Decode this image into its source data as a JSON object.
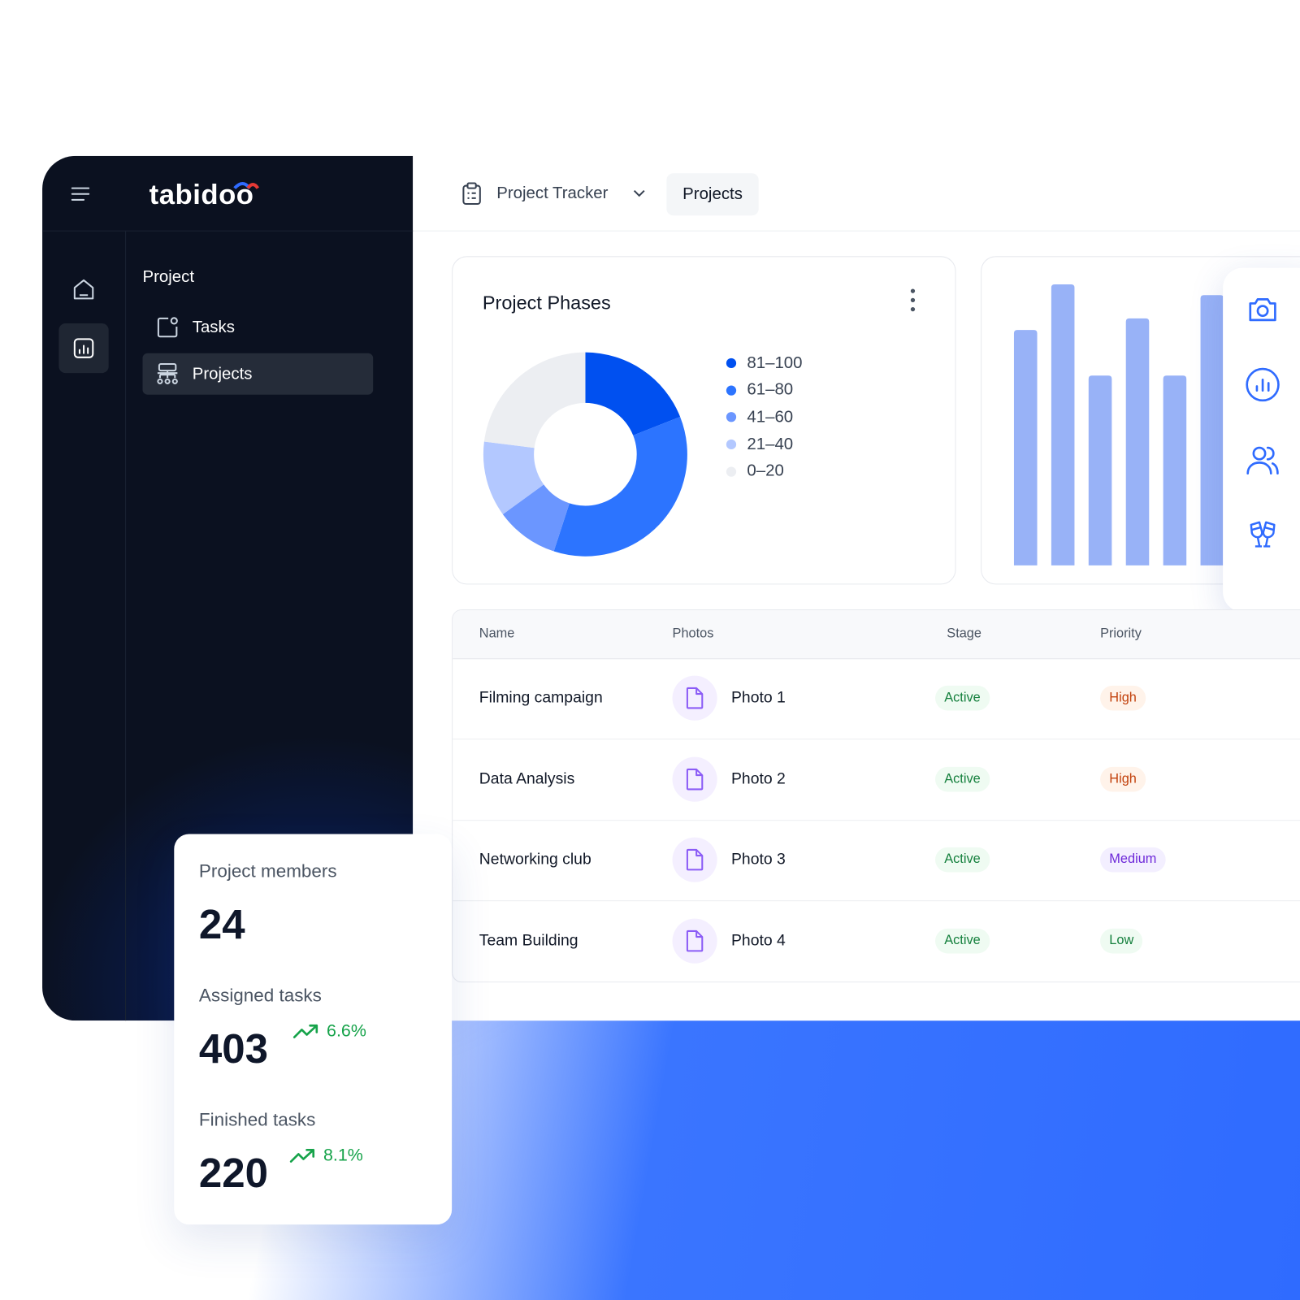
{
  "app": {
    "logo": "tabidoo",
    "breadcrumb": "Project Tracker",
    "tab": "Projects"
  },
  "sidebar": {
    "section": "Project",
    "items": [
      "Tasks",
      "Projects"
    ]
  },
  "chart_data": [
    {
      "type": "donut",
      "title": "Project Phases",
      "categories": [
        "81–100",
        "61–80",
        "41–60",
        "21–40",
        "0–20"
      ],
      "values": [
        19,
        36,
        10,
        12,
        23
      ],
      "colors": [
        "#0050f0",
        "#2c74ff",
        "#6b96ff",
        "#b3c8ff",
        "#eceef2"
      ]
    },
    {
      "type": "bar",
      "categories": [
        null,
        null,
        null,
        null,
        null,
        null
      ],
      "values": [
        284,
        339,
        229,
        298,
        229,
        326
      ],
      "ylim": [
        0,
        340
      ],
      "color": "#98b2f7"
    }
  ],
  "table": {
    "columns": [
      "Name",
      "Photos",
      "Stage",
      "Priority"
    ],
    "rows": [
      {
        "name": "Filming campaign",
        "photo": "Photo 1",
        "stage": "Active",
        "priority": "High",
        "priority_color": "#c2410c",
        "priority_bg": "#fff3ea"
      },
      {
        "name": "Data Analysis",
        "photo": "Photo 2",
        "stage": "Active",
        "priority": "High",
        "priority_color": "#c2410c",
        "priority_bg": "#fff3ea"
      },
      {
        "name": "Networking club",
        "photo": "Photo 3",
        "stage": "Active",
        "priority": "Medium",
        "priority_color": "#6d28d9",
        "priority_bg": "#f3efff"
      },
      {
        "name": "Team Building",
        "photo": "Photo 4",
        "stage": "Active",
        "priority": "Low",
        "priority_color": "#15803d",
        "priority_bg": "#effbf2"
      }
    ]
  },
  "stats": [
    {
      "label": "Project members",
      "value": "24"
    },
    {
      "label": "Assigned tasks",
      "value": "403",
      "change": "6.6%"
    },
    {
      "label": "Finished tasks",
      "value": "220",
      "change": "8.1%"
    }
  ]
}
